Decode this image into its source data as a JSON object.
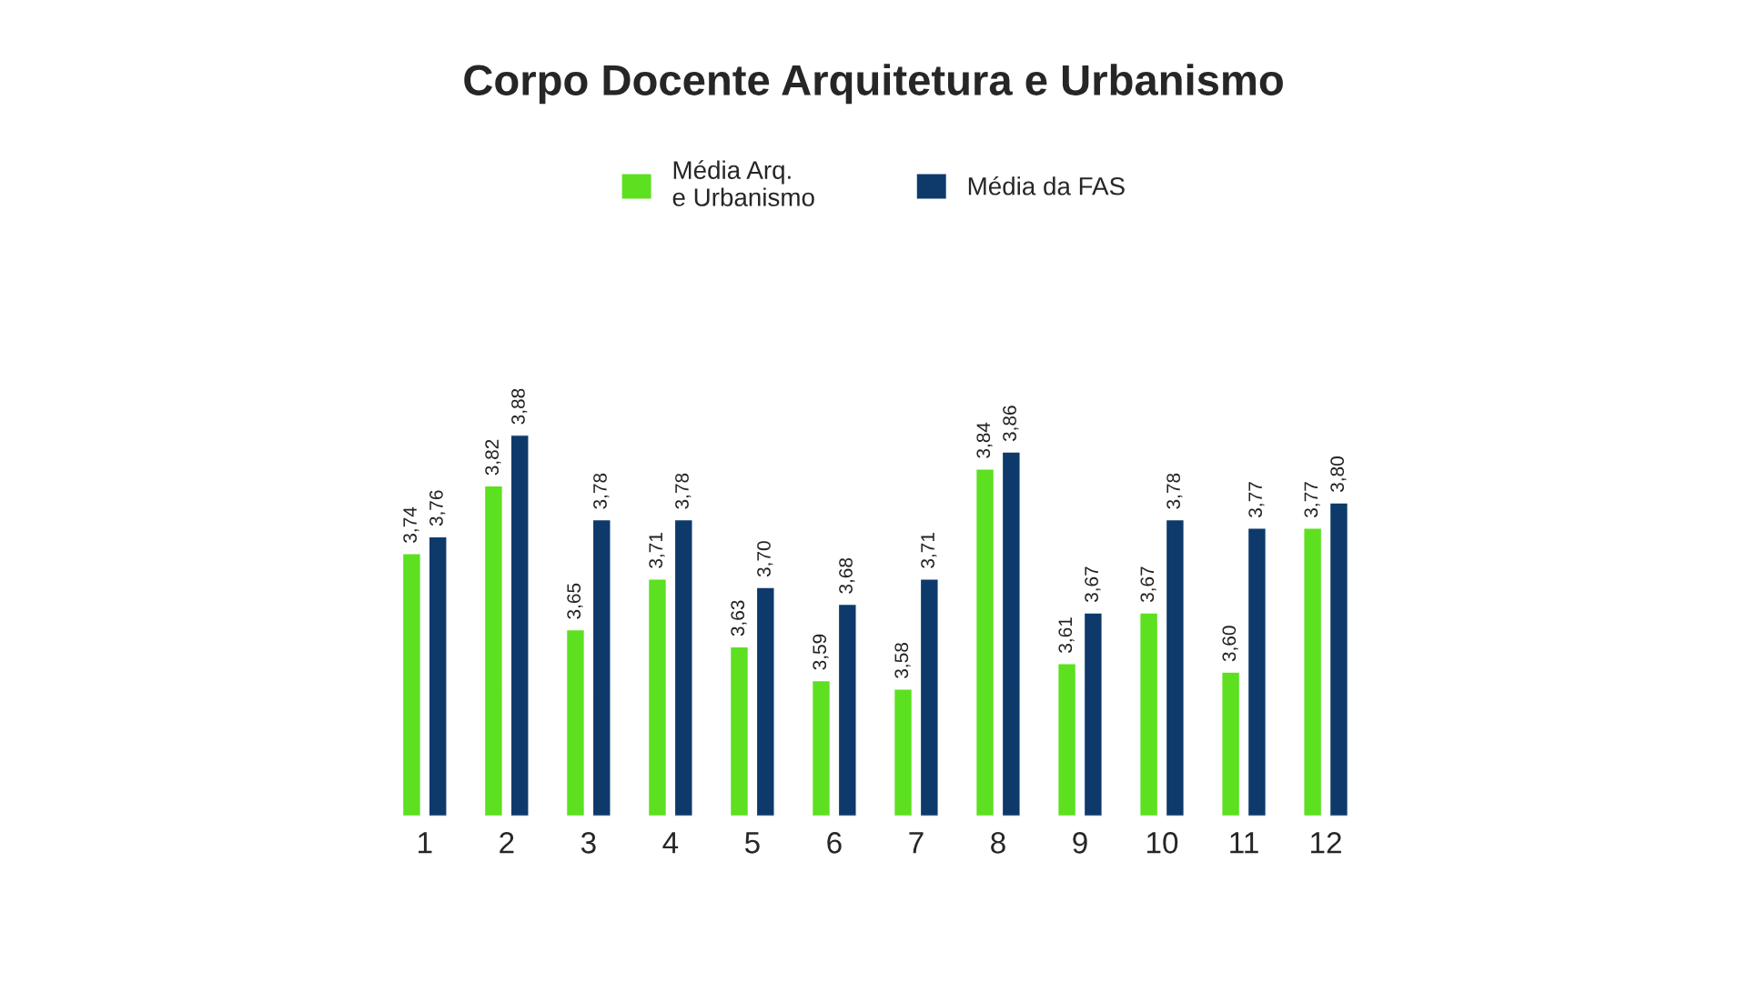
{
  "chart_data": {
    "type": "bar",
    "title": "Corpo Docente Arquitetura e Urbanismo",
    "categories": [
      "1",
      "2",
      "3",
      "4",
      "5",
      "6",
      "7",
      "8",
      "9",
      "10",
      "11",
      "12"
    ],
    "series": [
      {
        "name": "Média Arq.\ne Urbanismo",
        "color": "#5ce01f",
        "values": [
          3.74,
          3.82,
          3.65,
          3.71,
          3.63,
          3.59,
          3.58,
          3.84,
          3.61,
          3.67,
          3.6,
          3.77
        ],
        "value_labels": [
          "3,74",
          "3,82",
          "3,65",
          "3,71",
          "3,63",
          "3,59",
          "3,58",
          "3,84",
          "3,61",
          "3,67",
          "3,60",
          "3,77"
        ]
      },
      {
        "name": "Média da FAS",
        "color": "#0d3a6b",
        "values": [
          3.76,
          3.88,
          3.78,
          3.78,
          3.7,
          3.68,
          3.71,
          3.86,
          3.67,
          3.78,
          3.77,
          3.8
        ],
        "value_labels": [
          "3,76",
          "3,88",
          "3,78",
          "3,78",
          "3,70",
          "3,68",
          "3,71",
          "3,86",
          "3,67",
          "3,78",
          "3,77",
          "3,80"
        ]
      }
    ],
    "ylim": [
      3.43,
      3.88
    ],
    "legend": "top",
    "grid": false,
    "tick_labels": "x"
  }
}
